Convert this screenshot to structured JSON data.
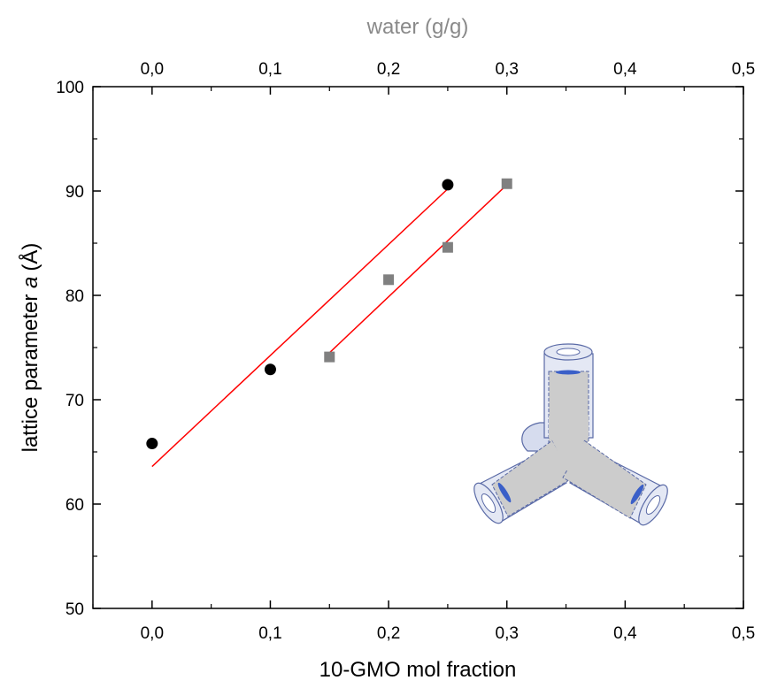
{
  "chart_data": {
    "type": "scatter",
    "xlabel_bottom": "10-GMO mol fraction",
    "xlabel_top": "water (g/g)",
    "ylabel_prefix": "lattice parameter ",
    "ylabel_var": "a",
    "ylabel_unit": "(Å)",
    "xlim": [
      -0.05,
      0.5
    ],
    "ylim": [
      50,
      100
    ],
    "x_ticks": [
      0.0,
      0.1,
      0.2,
      0.3,
      0.4,
      0.5
    ],
    "x_tick_labels": [
      "0,0",
      "0,1",
      "0,2",
      "0,3",
      "0,4",
      "0,5"
    ],
    "y_ticks": [
      50,
      60,
      70,
      80,
      90,
      100
    ],
    "y_tick_labels": [
      "50",
      "60",
      "70",
      "80",
      "90",
      "100"
    ],
    "grid": false,
    "series": [
      {
        "axis": "bottom",
        "marker": "circle",
        "color": "#000000",
        "x": [
          0.0,
          0.1,
          0.25
        ],
        "y": [
          65.8,
          72.9,
          90.6
        ],
        "fit": {
          "color": "#ff0000",
          "x": [
            0.0,
            0.25
          ],
          "y": [
            63.6,
            90.2
          ]
        }
      },
      {
        "axis": "top",
        "marker": "square",
        "color": "#808080",
        "x": [
          0.15,
          0.2,
          0.25,
          0.3
        ],
        "y": [
          74.1,
          81.5,
          84.6,
          90.7
        ],
        "fit": {
          "color": "#ff0000",
          "x": [
            0.15,
            0.3
          ],
          "y": [
            74.5,
            90.6
          ]
        }
      }
    ],
    "inset": "cubic-phase-channel-junction"
  }
}
